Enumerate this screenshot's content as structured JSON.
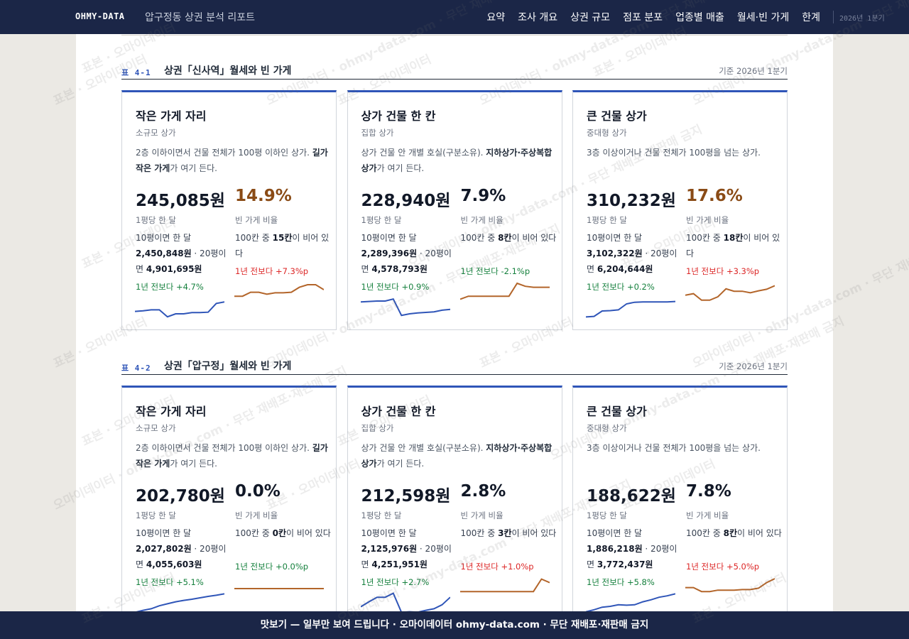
{
  "header": {
    "brand": "OHMY-DATA",
    "subtitle": "압구정동 상권 분석 리포트",
    "nav": [
      "요약",
      "조사 개요",
      "상권 규모",
      "점포 분포",
      "업종별 매출",
      "월세·빈 가게",
      "한계"
    ],
    "period": "2026년 1분기"
  },
  "sections": [
    {
      "label": "표 4-1",
      "title": "상권「신사역」월세와 빈 가게",
      "date": "기준 2026년 1분기",
      "cards": [
        {
          "title": "작은 가게 자리",
          "type": "소규모 상가",
          "desc_pre": "2층 이하이면서 건물 전체가 100평 이하인 상가. ",
          "desc_bold": "길가 작은 가게",
          "desc_post": "가 여기 든다.",
          "rent": "245,085원",
          "rent_unit": "1평당 한 달",
          "rent_10_label": "10평이면 한 달",
          "rent_10": "2,450,848원",
          "rent_20_label": " · 20평이면 ",
          "rent_20": "4,901,695원",
          "rent_yoy": "1년 전보다 +4.7%",
          "vacancy": "14.9%",
          "vacancy_high": true,
          "vac_unit": "빈 가게 비율",
          "vac_pre": "100칸 중 ",
          "vac_count": "15칸",
          "vac_post": "이 비어 있다",
          "vac_yoy": "1년 전보다 +7.3%p",
          "vac_dir": "up",
          "rent_trend": [
            0.3,
            0.33,
            0.38,
            0.38,
            0.03,
            0.18,
            0.18,
            0.24,
            0.24,
            0.26,
            0.7,
            0.78
          ],
          "vac_trend": [
            0.35,
            0.35,
            0.55,
            0.55,
            0.45,
            0.52,
            0.52,
            0.55,
            0.8,
            0.93,
            0.93,
            0.68
          ]
        },
        {
          "title": "상가 건물 한 칸",
          "type": "집합 상가",
          "desc_pre": "상가 건물 안 개별 호실(구분소유). ",
          "desc_bold": "지하상가·주상복합 상가",
          "desc_post": "가 여기 든다.",
          "rent": "228,940원",
          "rent_unit": "1평당 한 달",
          "rent_10_label": "10평이면 한 달",
          "rent_10": "2,289,396원",
          "rent_20_label": " · 20평이면 ",
          "rent_20": "4,578,793원",
          "rent_yoy": "1년 전보다 +0.9%",
          "vacancy": "7.9%",
          "vacancy_high": false,
          "vac_unit": "빈 가게 비율",
          "vac_pre": "100칸 중 ",
          "vac_count": "8칸",
          "vac_post": "이 비어 있다",
          "vac_yoy": "1년 전보다 -2.1%p",
          "vac_dir": "down",
          "rent_trend": [
            0.78,
            0.8,
            0.82,
            0.82,
            0.92,
            0.1,
            0.18,
            0.22,
            0.25,
            0.28,
            0.36,
            0.4
          ],
          "vac_trend": [
            0.2,
            0.35,
            0.35,
            0.35,
            0.35,
            0.35,
            0.35,
            1.0,
            0.85,
            0.8,
            0.8,
            0.8
          ]
        },
        {
          "title": "큰 건물 상가",
          "type": "중대형 상가",
          "desc_pre": "3층 이상이거나 건물 전체가 100평을 넘는 상가.",
          "desc_bold": "",
          "desc_post": "",
          "rent": "310,232원",
          "rent_unit": "1평당 한 달",
          "rent_10_label": "10평이면 한 달",
          "rent_10": "3,102,322원",
          "rent_20_label": " · 20평이면 ",
          "rent_20": "6,204,644원",
          "rent_yoy": "1년 전보다 +0.2%",
          "vacancy": "17.6%",
          "vacancy_high": true,
          "vac_unit": "빈 가게 비율",
          "vac_pre": "100칸 중 ",
          "vac_count": "18칸",
          "vac_post": "이 비어 있다",
          "vac_yoy": "1년 전보다 +3.3%p",
          "vac_dir": "up",
          "rent_trend": [
            0.02,
            0.05,
            0.32,
            0.34,
            0.38,
            0.68,
            0.76,
            0.78,
            0.78,
            0.78,
            0.78,
            0.8
          ],
          "vac_trend": [
            0.4,
            0.48,
            0.15,
            0.15,
            0.32,
            0.72,
            0.6,
            0.6,
            0.52,
            0.62,
            0.7,
            0.88
          ]
        }
      ]
    },
    {
      "label": "표 4-2",
      "title": "상권「압구정」월세와 빈 가게",
      "date": "기준 2026년 1분기",
      "cards": [
        {
          "title": "작은 가게 자리",
          "type": "소규모 상가",
          "desc_pre": "2층 이하이면서 건물 전체가 100평 이하인 상가. ",
          "desc_bold": "길가 작은 가게",
          "desc_post": "가 여기 든다.",
          "rent": "202,780원",
          "rent_unit": "1평당 한 달",
          "rent_10_label": "10평이면 한 달",
          "rent_10": "2,027,802원",
          "rent_20_label": " · 20평이면 ",
          "rent_20": "4,055,603원",
          "rent_yoy": "1년 전보다 +5.1%",
          "vacancy": "0.0%",
          "vacancy_high": false,
          "vac_unit": "빈 가게 비율",
          "vac_pre": "100칸 중 ",
          "vac_count": "0칸",
          "vac_post": "이 비어 있다",
          "vac_yoy": "1년 전보다 +0.0%p",
          "vac_dir": "down",
          "rent_trend": [
            0.02,
            0.12,
            0.2,
            0.35,
            0.45,
            0.55,
            0.62,
            0.68,
            0.75,
            0.82,
            0.88,
            0.95
          ],
          "vac_trend": [
            0.5,
            0.5,
            0.5,
            0.5,
            0.5,
            0.5,
            0.5,
            0.5,
            0.5,
            0.5,
            0.5,
            0.5
          ]
        },
        {
          "title": "상가 건물 한 칸",
          "type": "집합 상가",
          "desc_pre": "상가 건물 안 개별 호실(구분소유). ",
          "desc_bold": "지하상가·주상복합 상가",
          "desc_post": "가 여기 든다.",
          "rent": "212,598원",
          "rent_unit": "1평당 한 달",
          "rent_10_label": "10평이면 한 달",
          "rent_10": "2,125,976원",
          "rent_20_label": " · 20평이면 ",
          "rent_20": "4,251,951원",
          "rent_yoy": "1년 전보다 +2.7%",
          "vacancy": "2.8%",
          "vacancy_high": false,
          "vac_unit": "빈 가게 비율",
          "vac_pre": "100칸 중 ",
          "vac_count": "3칸",
          "vac_post": "이 비어 있다",
          "vac_yoy": "1년 전보다 +1.0%p",
          "vac_dir": "up",
          "rent_trend": [
            0.3,
            0.55,
            0.78,
            0.78,
            0.98,
            0.02,
            0.05,
            0.03,
            0.12,
            0.2,
            0.4,
            0.78
          ],
          "vac_trend": [
            0.35,
            0.35,
            0.35,
            0.35,
            0.35,
            0.35,
            0.35,
            0.35,
            0.35,
            0.35,
            0.98,
            0.8
          ]
        },
        {
          "title": "큰 건물 상가",
          "type": "중대형 상가",
          "desc_pre": "3층 이상이거나 건물 전체가 100평을 넘는 상가.",
          "desc_bold": "",
          "desc_post": "",
          "rent": "188,622원",
          "rent_unit": "1평당 한 달",
          "rent_10_label": "10평이면 한 달",
          "rent_10": "1,886,218원",
          "rent_20_label": " · 20평이면 ",
          "rent_20": "3,772,437원",
          "rent_yoy": "1년 전보다 +5.8%",
          "vacancy": "7.8%",
          "vacancy_high": false,
          "vac_unit": "빈 가게 비율",
          "vac_pre": "100칸 중 ",
          "vac_count": "8칸",
          "vac_post": "이 비어 있다",
          "vac_yoy": "1년 전보다 +5.0%p",
          "vac_dir": "up",
          "rent_trend": [
            0.05,
            0.15,
            0.28,
            0.32,
            0.4,
            0.38,
            0.4,
            0.55,
            0.65,
            0.78,
            0.85,
            0.95
          ],
          "vac_trend": [
            0.55,
            0.55,
            0.35,
            0.35,
            0.42,
            0.42,
            0.42,
            0.45,
            0.45,
            0.52,
            0.8,
            1.0
          ]
        }
      ]
    }
  ],
  "banner": "맛보기 — 일부만 보여 드립니다 · 오마이데이터 ohmy-data.com · 무단 재배포·재판매 금지",
  "watermark": [
    "표본 · 오마이데이터",
    "오마이데이터 · ohmy-data.com · 무단 재배포·재판매 금지"
  ],
  "colors": {
    "navy": "#1b2647",
    "accent_blue": "#2f55b8",
    "rent_line": "#2f55b8",
    "vacancy_line": "#b3652a",
    "vacancy_high": "#8a4b16",
    "up_red": "#dc2626",
    "down_green": "#15803d"
  }
}
